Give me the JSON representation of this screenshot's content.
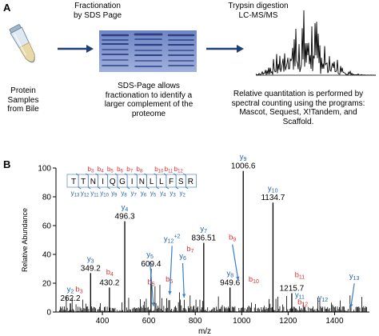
{
  "panel_a": {
    "label": "A",
    "step1_title": [
      "Fractionation",
      "by SDS Page"
    ],
    "step2_title": [
      "Trypsin digestion",
      "LC-MS/MS"
    ],
    "caption_left": [
      "Protein",
      "Samples",
      "from Bile"
    ],
    "caption_mid": [
      "SDS-Page allows",
      "fractionation to identify a",
      "larger complement of the",
      "proteome"
    ],
    "caption_right": [
      "Relative quantitation is performed by",
      "spectral counting using the programs:",
      "Mascot, Sequest, X!Tandem, and",
      "Scaffold."
    ]
  },
  "panel_b": {
    "label": "B",
    "sequence": [
      "T",
      "T",
      "N",
      "I",
      "Q",
      "G",
      "I",
      "N",
      "L",
      "L",
      "F",
      "S",
      "R"
    ],
    "b_labels": [
      "b3",
      "b4",
      "b5",
      "b6",
      "b7",
      "b8",
      "b10",
      "b11",
      "b12"
    ],
    "y_labels": [
      "y13",
      "y12",
      "y11",
      "y10",
      "y9",
      "y8",
      "y7",
      "y6",
      "y5",
      "y4",
      "y3",
      "y2"
    ],
    "colors": {
      "b_ion": "#e03030",
      "y_ion": "#2060b0",
      "arrow": "#3a7ec8"
    }
  },
  "chart_data": {
    "type": "bar",
    "xlabel": "m/z",
    "ylabel": "Relative Abundance",
    "xlim": [
      200,
      1550
    ],
    "ylim": [
      0,
      100
    ],
    "xticks": [
      400,
      600,
      800,
      1000,
      1200,
      1400
    ],
    "yticks": [
      0,
      20,
      40,
      60,
      80,
      100
    ],
    "peaks": [
      {
        "x": 262.2,
        "y": 6
      },
      {
        "x": 349.2,
        "y": 27
      },
      {
        "x": 430.2,
        "y": 17
      },
      {
        "x": 496.3,
        "y": 63
      },
      {
        "x": 609.4,
        "y": 30
      },
      {
        "x": 836.51,
        "y": 48
      },
      {
        "x": 949.6,
        "y": 17
      },
      {
        "x": 1006.6,
        "y": 98
      },
      {
        "x": 1134.7,
        "y": 76
      },
      {
        "x": 1215.7,
        "y": 13
      }
    ],
    "peak_labels": [
      {
        "text": "262.2",
        "x": 262.2,
        "y": 6
      },
      {
        "text": "349.2",
        "x": 349.2,
        "y": 27
      },
      {
        "text": "430.2",
        "x": 430.2,
        "y": 17
      },
      {
        "text": "496.3",
        "x": 496.3,
        "y": 63
      },
      {
        "text": "609.4",
        "x": 609.4,
        "y": 30
      },
      {
        "text": "836.51",
        "x": 836.51,
        "y": 48
      },
      {
        "text": "949.6",
        "x": 949.6,
        "y": 17
      },
      {
        "text": "1006.6",
        "x": 1006.6,
        "y": 98
      },
      {
        "text": "1134.7",
        "x": 1134.7,
        "y": 76
      },
      {
        "text": "1215.7",
        "x": 1215.7,
        "y": 13
      }
    ],
    "ion_labels": [
      {
        "ion": "y2",
        "type": "y",
        "x": 262,
        "y": 12
      },
      {
        "ion": "b3",
        "type": "b",
        "x": 300,
        "y": 12
      },
      {
        "ion": "y3",
        "type": "y",
        "x": 349,
        "y": 33
      },
      {
        "ion": "b4",
        "type": "b",
        "x": 432,
        "y": 24
      },
      {
        "ion": "y4",
        "type": "y",
        "x": 496,
        "y": 69
      },
      {
        "ion": "y5",
        "type": "y",
        "x": 605,
        "y": 36
      },
      {
        "ion": "b5",
        "type": "b",
        "x": 610,
        "y": 17
      },
      {
        "ion": "b6",
        "type": "b",
        "x": 688,
        "y": 19
      },
      {
        "ion": "y12+2",
        "type": "y",
        "x": 700,
        "y": 47
      },
      {
        "ion": "y6",
        "type": "y",
        "x": 746,
        "y": 35
      },
      {
        "ion": "b7",
        "type": "b",
        "x": 778,
        "y": 40
      },
      {
        "ion": "y7",
        "type": "y",
        "x": 836,
        "y": 54
      },
      {
        "ion": "b9",
        "type": "b",
        "x": 960,
        "y": 48
      },
      {
        "ion": "y8",
        "type": "y",
        "x": 950,
        "y": 23
      },
      {
        "ion": "y9",
        "type": "y",
        "x": 1006,
        "y": 104
      },
      {
        "ion": "b10",
        "type": "b",
        "x": 1052,
        "y": 19
      },
      {
        "ion": "y10",
        "type": "y",
        "x": 1134,
        "y": 82
      },
      {
        "ion": "b11",
        "type": "b",
        "x": 1250,
        "y": 22
      },
      {
        "ion": "y11",
        "type": "y",
        "x": 1250,
        "y": 8
      },
      {
        "ion": "b12",
        "type": "b",
        "x": 1263,
        "y": 3
      },
      {
        "ion": "y12",
        "type": "y",
        "x": 1350,
        "y": 6
      },
      {
        "ion": "y13",
        "type": "y",
        "x": 1485,
        "y": 21
      }
    ]
  }
}
